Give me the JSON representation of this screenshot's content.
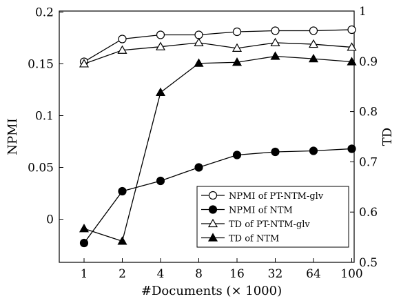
{
  "chart_data": {
    "type": "line",
    "xlabel": "#Documents (× 1000)",
    "ylabel_left": "NPMI",
    "ylabel_right": "TD",
    "categories": [
      "1",
      "2",
      "4",
      "8",
      "16",
      "32",
      "64",
      "100"
    ],
    "ylim_left": [
      -0.045,
      0.2
    ],
    "yticks_left": [
      "0.2",
      "0.15",
      "0.1",
      "0.05",
      "0"
    ],
    "ylim_right": [
      0.5,
      1.0
    ],
    "yticks_right": [
      "1",
      "0.9",
      "0.8",
      "0.7",
      "0.6",
      "0.5"
    ],
    "grid": false,
    "legend_position": "lower-right",
    "series": [
      {
        "name": "NPMI of PT-NTM-glv",
        "axis": "left",
        "marker": "circle-open",
        "values": [
          0.152,
          0.174,
          0.178,
          0.178,
          0.181,
          0.182,
          0.182,
          0.183
        ]
      },
      {
        "name": "NPMI of NTM",
        "axis": "left",
        "marker": "circle-filled",
        "values": [
          -0.023,
          0.027,
          0.037,
          0.05,
          0.062,
          0.065,
          0.066,
          0.068
        ]
      },
      {
        "name": "TD of PT-NTM-glv",
        "axis": "right",
        "marker": "triangle-open",
        "values": [
          0.895,
          0.922,
          0.929,
          0.937,
          0.926,
          0.937,
          0.934,
          0.928
        ]
      },
      {
        "name": "TD of NTM",
        "axis": "right",
        "marker": "triangle-filled",
        "values": [
          0.567,
          0.542,
          0.838,
          0.896,
          0.898,
          0.91,
          0.905,
          0.899
        ]
      }
    ]
  }
}
